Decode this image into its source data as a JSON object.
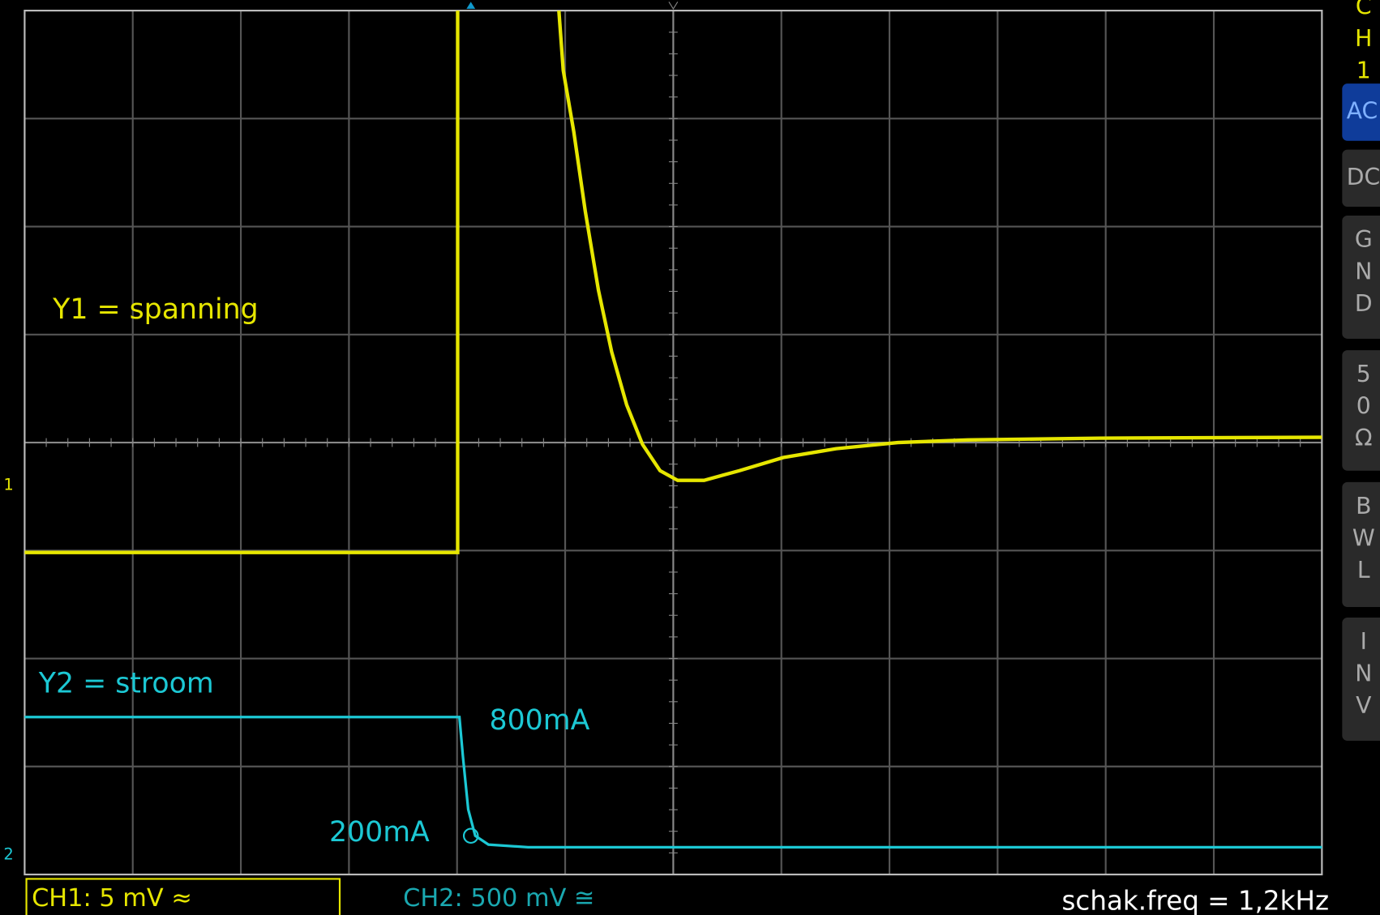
{
  "channel": "CH1",
  "buttons": [
    "AC",
    "DC",
    "GND",
    "50Ω",
    "BWL",
    "INV"
  ],
  "annotations": {
    "y1": "Y1 = spanning",
    "y2": "Y2 = stroom",
    "high": "800mA",
    "low": "200mA"
  },
  "markers": {
    "ch1": "1",
    "ch2": "2"
  },
  "status": {
    "ch1": "CH1: 5 mV ≈",
    "ch2": "CH2: 500 mV ≅",
    "freq": "schak.freq = 1,2kHz"
  }
}
